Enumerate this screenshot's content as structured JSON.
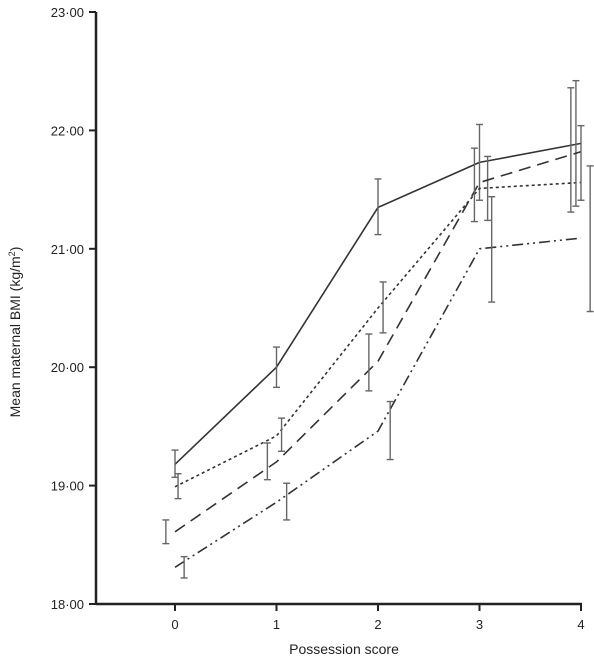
{
  "chart_data": {
    "type": "line",
    "xlabel": "Possession score",
    "ylabel": "Mean maternal BMI (kg/m",
    "ylabel_sup": "2",
    "ylabel_end": ")",
    "xlim": [
      -0.75,
      4.03
    ],
    "ylim": [
      18.0,
      23.0
    ],
    "x_ticks": [
      0,
      1,
      2,
      3,
      4
    ],
    "x_tick_labels": [
      "0",
      "1",
      "2",
      "3",
      "4"
    ],
    "y_ticks": [
      18,
      19,
      20,
      21,
      22,
      23
    ],
    "y_tick_labels": [
      "18·00",
      "19·00",
      "20·00",
      "21·00",
      "22·00",
      "23·00"
    ],
    "grid": false,
    "legend": "none",
    "series": [
      {
        "style": "solid",
        "x": [
          0,
          1,
          2,
          3,
          4
        ],
        "y": [
          19.18,
          20.0,
          21.35,
          21.73,
          21.89
        ],
        "errorbars": [
          {
            "x": 0.0,
            "low": 19.07,
            "high": 19.3
          },
          {
            "x": 1.0,
            "low": 19.83,
            "high": 20.17
          },
          {
            "x": 2.0,
            "low": 21.12,
            "high": 21.59
          },
          {
            "x": 3.0,
            "low": 21.41,
            "high": 22.05
          },
          {
            "x": 3.9,
            "low": 21.31,
            "high": 22.36
          }
        ]
      },
      {
        "style": "dotted",
        "x": [
          0,
          1,
          2,
          3,
          4
        ],
        "y": [
          18.99,
          19.42,
          20.5,
          21.51,
          21.56
        ],
        "errorbars": [
          {
            "x": 0.03,
            "low": 18.89,
            "high": 19.1
          },
          {
            "x": 1.05,
            "low": 19.29,
            "high": 19.57
          },
          {
            "x": 2.05,
            "low": 20.29,
            "high": 20.72
          },
          {
            "x": 3.08,
            "low": 21.24,
            "high": 21.78
          },
          {
            "x": 3.95,
            "low": 21.36,
            "high": 22.42
          }
        ]
      },
      {
        "style": "dashed",
        "x": [
          0,
          1,
          2,
          3,
          4
        ],
        "y": [
          18.61,
          19.2,
          20.05,
          21.56,
          21.82
        ],
        "errorbars": [
          {
            "x": -0.09,
            "low": 18.51,
            "high": 18.71
          },
          {
            "x": 0.91,
            "low": 19.05,
            "high": 19.36
          },
          {
            "x": 1.91,
            "low": 19.8,
            "high": 20.28
          },
          {
            "x": 2.95,
            "low": 21.23,
            "high": 21.85
          },
          {
            "x": 4.0,
            "low": 21.41,
            "high": 22.04
          }
        ]
      },
      {
        "style": "dash-dot-dot",
        "x": [
          0,
          1,
          2,
          3,
          4
        ],
        "y": [
          18.31,
          18.86,
          19.46,
          21.0,
          21.09
        ],
        "errorbars": [
          {
            "x": 0.09,
            "low": 18.22,
            "high": 18.4
          },
          {
            "x": 1.1,
            "low": 18.71,
            "high": 19.02
          },
          {
            "x": 2.12,
            "low": 19.22,
            "high": 19.71
          },
          {
            "x": 3.12,
            "low": 20.55,
            "high": 21.44
          },
          {
            "x": 4.09,
            "low": 20.47,
            "high": 21.7
          }
        ]
      }
    ]
  }
}
